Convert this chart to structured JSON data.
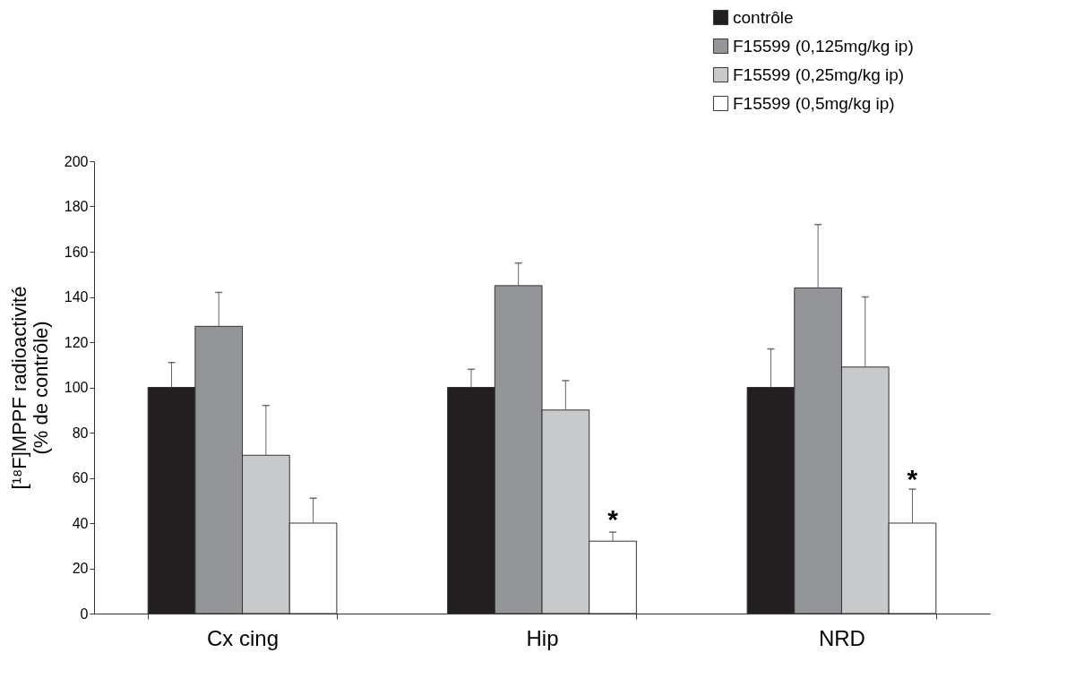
{
  "chart_data": {
    "type": "bar",
    "ylabel": "[¹⁸F]MPPF radioactivité\n(% de contrôle)",
    "categories": [
      "Cx cing",
      "Hip",
      "NRD"
    ],
    "series": [
      {
        "name": "contrôle",
        "color": "#231f20",
        "values": [
          100,
          100,
          100
        ],
        "errors": [
          [
            100,
            111
          ],
          [
            100,
            108
          ],
          [
            100,
            117
          ]
        ]
      },
      {
        "name": "F15599 (0,125mg/kg ip)",
        "color": "#939598",
        "values": [
          127,
          145,
          144
        ],
        "errors": [
          [
            127,
            142
          ],
          [
            145,
            155
          ],
          [
            144,
            172
          ]
        ]
      },
      {
        "name": "F15599 (0,25mg/kg ip)",
        "color": "#c8c9cb",
        "values": [
          70,
          90,
          109
        ],
        "errors": [
          [
            70,
            92
          ],
          [
            90,
            103
          ],
          [
            109,
            140
          ]
        ]
      },
      {
        "name": "F15599 (0,5mg/kg ip)",
        "color": "#ffffff",
        "values": [
          40,
          32,
          40
        ],
        "errors": [
          [
            40,
            51
          ],
          [
            32,
            36
          ],
          [
            40,
            55
          ]
        ]
      }
    ],
    "annotations": [
      {
        "text": "*",
        "x": "Hip",
        "y": 41
      },
      {
        "text": "*",
        "x": "NRD",
        "y": 59
      }
    ],
    "ylim": [
      0,
      200
    ],
    "yticks": [
      0,
      20,
      40,
      60,
      80,
      100,
      120,
      140,
      160,
      180,
      200
    ],
    "grid": false,
    "legend": "top right"
  }
}
